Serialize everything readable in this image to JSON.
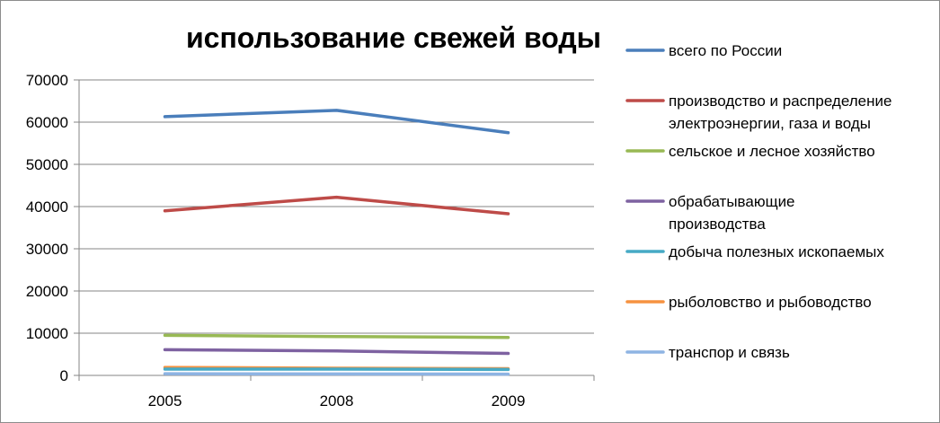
{
  "chart_data": {
    "type": "line",
    "title": "использование свежей воды",
    "xlabel": "",
    "ylabel": "",
    "categories": [
      "2005",
      "2008",
      "2009"
    ],
    "ylim": [
      0,
      70000
    ],
    "yticks": [
      "0",
      "10000",
      "20000",
      "30000",
      "40000",
      "50000",
      "60000",
      "70000"
    ],
    "grid": true,
    "legend_position": "right",
    "series": [
      {
        "name": "всего по России",
        "name_lines": [
          "всего по России"
        ],
        "values": [
          61300,
          62800,
          57500
        ],
        "color": "#4A7EBB"
      },
      {
        "name": "производство и распределение электроэнергии, газа и воды",
        "name_lines": [
          "производство и распределение",
          "электроэнергии, газа и воды"
        ],
        "values": [
          39000,
          42200,
          38300
        ],
        "color": "#BE4B48"
      },
      {
        "name": "сельское и лесное хозяйство",
        "name_lines": [
          "сельское и лесное хозяйство"
        ],
        "values": [
          9500,
          9200,
          9000
        ],
        "color": "#98B954"
      },
      {
        "name": "обрабатывающие производства",
        "name_lines": [
          "обрабатывающие",
          "производства"
        ],
        "values": [
          6100,
          5800,
          5200
        ],
        "color": "#7E62A1"
      },
      {
        "name": "добыча полезных ископаемых",
        "name_lines": [
          "добыча полезных ископаемых"
        ],
        "values": [
          1500,
          1500,
          1400
        ],
        "color": "#46AAC5"
      },
      {
        "name": "рыболовство и рыбоводство",
        "name_lines": [
          "рыболовство и рыбоводство"
        ],
        "values": [
          1900,
          1700,
          1600
        ],
        "color": "#F69240"
      },
      {
        "name": "транспор и связь",
        "name_lines": [
          "транспор и связь"
        ],
        "values": [
          400,
          350,
          300
        ],
        "color": "#8EB4E3"
      }
    ]
  }
}
